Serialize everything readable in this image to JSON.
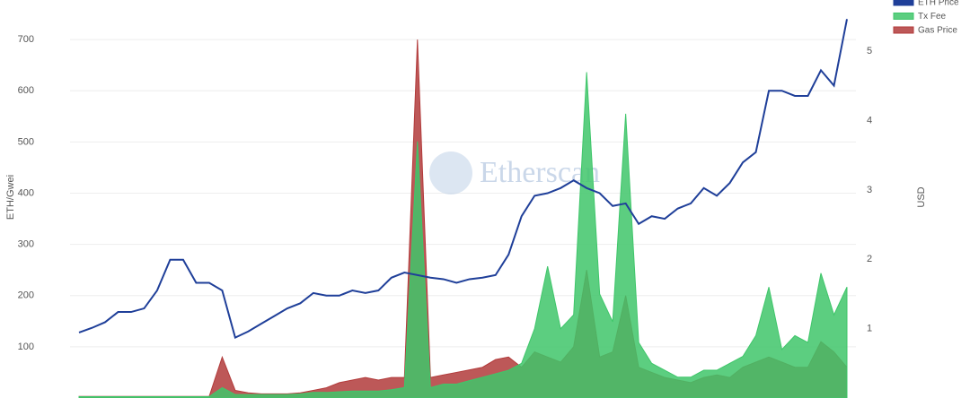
{
  "chart_data": {
    "type": "line-area",
    "watermark": "Etherscan",
    "ylabel": "ETH/Gwei",
    "y2label": "USD",
    "categories": [
      null,
      null,
      null,
      null,
      null,
      null,
      null,
      null,
      null,
      null,
      null,
      null,
      null,
      null,
      null,
      null,
      null,
      null,
      null,
      null,
      null,
      null,
      null,
      null,
      null,
      null,
      null,
      null,
      null,
      null,
      null,
      null,
      null,
      null,
      null,
      null,
      null,
      null,
      null,
      null,
      null,
      null,
      null,
      null,
      null,
      null,
      null,
      null,
      null,
      null,
      null,
      null,
      null,
      null,
      null,
      null,
      null,
      null,
      null,
      null
    ],
    "ylim": [
      0,
      765
    ],
    "yticks": [
      100,
      200,
      300,
      400,
      500,
      600,
      700
    ],
    "y2lim": [
      0,
      5.65
    ],
    "y2ticks": [
      1,
      2,
      3,
      4,
      5
    ],
    "grid": true,
    "legend": "top-right",
    "series": [
      {
        "name": "ETH Price",
        "color": "#1f3f99",
        "kind": "line",
        "axis": "y",
        "values": [
          128,
          137,
          148,
          168,
          168,
          175,
          210,
          270,
          270,
          225,
          225,
          210,
          118,
          130,
          145,
          160,
          175,
          185,
          205,
          200,
          200,
          210,
          205,
          210,
          235,
          245,
          240,
          235,
          232,
          225,
          232,
          235,
          240,
          280,
          355,
          395,
          400,
          410,
          425,
          410,
          400,
          375,
          380,
          340,
          355,
          350,
          370,
          380,
          410,
          395,
          420,
          460,
          480,
          600,
          600,
          590,
          590,
          640,
          610,
          740
        ]
      },
      {
        "name": "Tx Fee",
        "color": "#3fc66a",
        "kind": "area",
        "axis": "y2",
        "values": [
          0.02,
          0.02,
          0.02,
          0.02,
          0.02,
          0.02,
          0.02,
          0.02,
          0.02,
          0.02,
          0.02,
          0.15,
          0.05,
          0.05,
          0.05,
          0.05,
          0.05,
          0.06,
          0.08,
          0.08,
          0.09,
          0.1,
          0.1,
          0.1,
          0.12,
          0.15,
          3.7,
          0.15,
          0.2,
          0.2,
          0.25,
          0.3,
          0.35,
          0.4,
          0.5,
          1.0,
          1.9,
          1.0,
          1.2,
          4.7,
          1.5,
          1.1,
          4.1,
          0.8,
          0.5,
          0.4,
          0.3,
          0.3,
          0.4,
          0.4,
          0.5,
          0.6,
          0.9,
          1.6,
          0.7,
          0.9,
          0.8,
          1.8,
          1.2,
          1.6
        ]
      },
      {
        "name": "Gas Price",
        "color": "#b23b3b",
        "kind": "area",
        "axis": "y",
        "values": [
          3,
          3,
          3,
          3,
          3,
          3,
          3,
          3,
          3,
          3,
          3,
          80,
          15,
          10,
          8,
          8,
          8,
          10,
          15,
          20,
          30,
          35,
          40,
          35,
          40,
          40,
          700,
          40,
          45,
          50,
          55,
          60,
          75,
          80,
          60,
          90,
          80,
          70,
          100,
          250,
          80,
          90,
          200,
          60,
          50,
          40,
          35,
          30,
          40,
          45,
          40,
          60,
          70,
          80,
          70,
          60,
          60,
          110,
          90,
          60
        ]
      }
    ]
  }
}
